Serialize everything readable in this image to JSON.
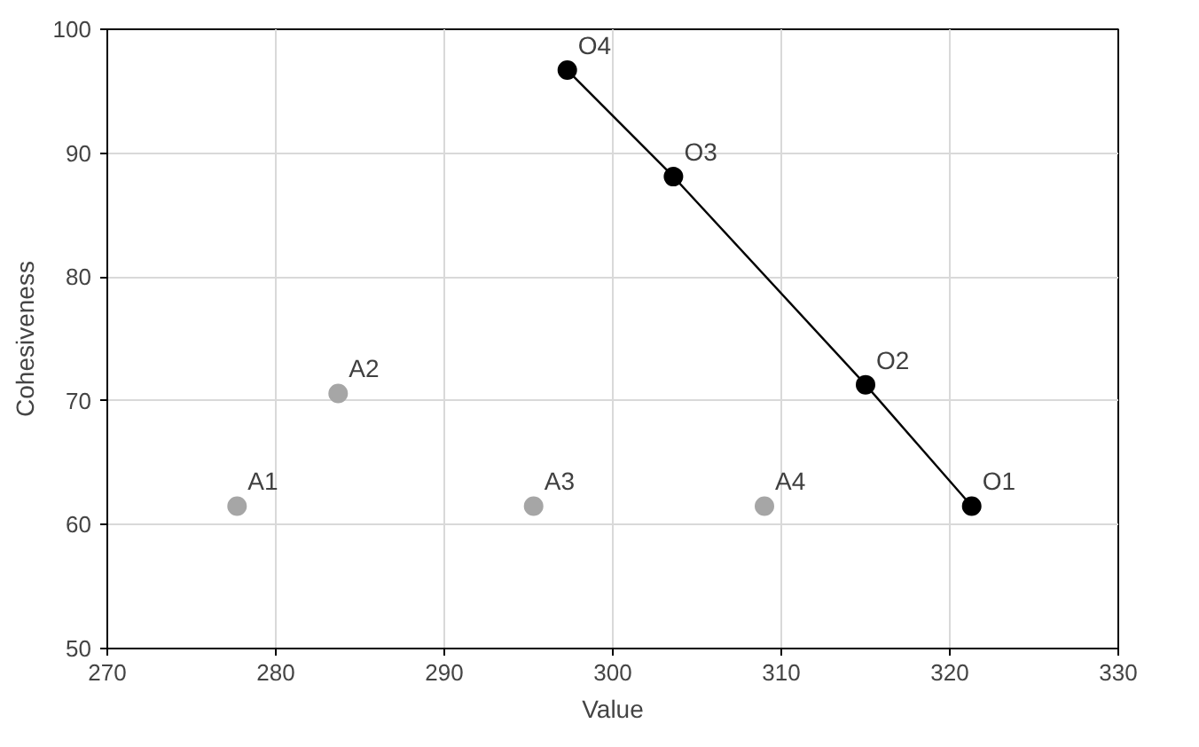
{
  "chart_data": {
    "type": "scatter",
    "xlabel": "Value",
    "ylabel": "Cohesiveness",
    "xlim": [
      270,
      330
    ],
    "xticks": [
      270,
      280,
      290,
      300,
      310,
      320,
      330
    ],
    "ylim": [
      50,
      100
    ],
    "yticks": [
      50,
      60,
      70,
      80,
      90,
      100
    ],
    "grid": true,
    "marker": "circle",
    "series": [
      {
        "color": "#a6a6a6",
        "x": [
          277.7,
          283.7,
          295.3,
          309.0
        ],
        "values": [
          61.5,
          70.6,
          61.5,
          61.5
        ]
      },
      {
        "type": "line",
        "color": "#000000",
        "x": [
          321.3,
          315.0,
          303.6,
          297.3
        ],
        "values": [
          61.5,
          71.3,
          88.1,
          96.7
        ]
      }
    ],
    "annotations": [
      {
        "text": "A1",
        "x": 277.7,
        "y": 61.5
      },
      {
        "text": "A2",
        "x": 283.7,
        "y": 70.6
      },
      {
        "text": "A3",
        "x": 295.3,
        "y": 61.5
      },
      {
        "text": "A4",
        "x": 309.0,
        "y": 61.5
      },
      {
        "text": "O1",
        "x": 321.3,
        "y": 61.5
      },
      {
        "text": "O2",
        "x": 315.0,
        "y": 71.3
      },
      {
        "text": "O3",
        "x": 303.6,
        "y": 88.1
      },
      {
        "text": "O4",
        "x": 297.3,
        "y": 96.7
      }
    ]
  }
}
